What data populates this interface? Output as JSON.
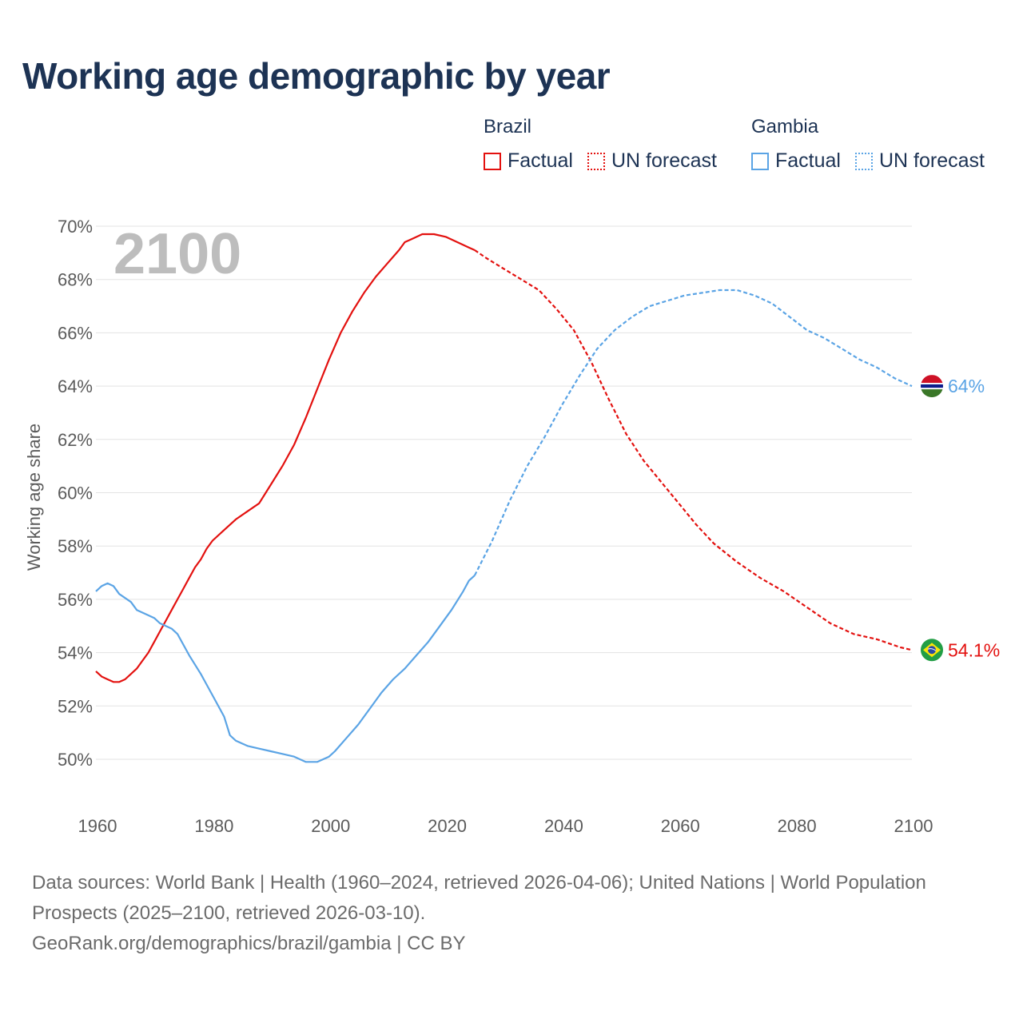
{
  "title": "Working age demographic by year",
  "year_overlay": "2100",
  "legend": {
    "brazil": {
      "name": "Brazil",
      "factual": "Factual",
      "forecast": "UN forecast"
    },
    "gambia": {
      "name": "Gambia",
      "factual": "Factual",
      "forecast": "UN forecast"
    }
  },
  "colors": {
    "brazil": "#e3110f",
    "gambia": "#5ba4e5"
  },
  "footer": {
    "line1": "Data sources: World Bank | Health (1960–2024, retrieved 2026-04-06); United Nations | World Population Prospects (2025–2100, retrieved 2026-03-10).",
    "line2": "GeoRank.org/demographics/brazil/gambia | CC BY"
  },
  "chart_data": {
    "type": "line",
    "title": "Working age demographic by year",
    "xlabel": "",
    "ylabel": "Working age share",
    "xlim": [
      1960,
      2100
    ],
    "ylim": [
      48.5,
      70
    ],
    "x_ticks": [
      1960,
      1980,
      2000,
      2020,
      2040,
      2060,
      2080,
      2100
    ],
    "y_ticks": [
      50,
      52,
      54,
      56,
      58,
      60,
      62,
      64,
      66,
      68,
      70
    ],
    "y_tick_suffix": "%",
    "forecast_start": 2025,
    "series": [
      {
        "name": "Brazil",
        "color": "#e3110f",
        "end_label": "54.1%",
        "points": [
          [
            1960,
            53.3
          ],
          [
            1961,
            53.1
          ],
          [
            1962,
            53.0
          ],
          [
            1963,
            52.9
          ],
          [
            1964,
            52.9
          ],
          [
            1965,
            53.0
          ],
          [
            1966,
            53.2
          ],
          [
            1967,
            53.4
          ],
          [
            1968,
            53.7
          ],
          [
            1969,
            54.0
          ],
          [
            1970,
            54.4
          ],
          [
            1971,
            54.8
          ],
          [
            1972,
            55.2
          ],
          [
            1973,
            55.6
          ],
          [
            1974,
            56.0
          ],
          [
            1975,
            56.4
          ],
          [
            1976,
            56.8
          ],
          [
            1977,
            57.2
          ],
          [
            1978,
            57.5
          ],
          [
            1979,
            57.9
          ],
          [
            1980,
            58.2
          ],
          [
            1982,
            58.6
          ],
          [
            1984,
            59.0
          ],
          [
            1986,
            59.3
          ],
          [
            1988,
            59.6
          ],
          [
            1990,
            60.3
          ],
          [
            1992,
            61.0
          ],
          [
            1994,
            61.8
          ],
          [
            1996,
            62.8
          ],
          [
            1998,
            63.9
          ],
          [
            2000,
            65.0
          ],
          [
            2002,
            66.0
          ],
          [
            2004,
            66.8
          ],
          [
            2006,
            67.5
          ],
          [
            2008,
            68.1
          ],
          [
            2010,
            68.6
          ],
          [
            2012,
            69.1
          ],
          [
            2013,
            69.4
          ],
          [
            2014,
            69.5
          ],
          [
            2016,
            69.7
          ],
          [
            2018,
            69.7
          ],
          [
            2020,
            69.6
          ],
          [
            2022,
            69.4
          ],
          [
            2024,
            69.2
          ],
          [
            2025,
            69.1
          ],
          [
            2027,
            68.8
          ],
          [
            2030,
            68.4
          ],
          [
            2033,
            68.0
          ],
          [
            2036,
            67.6
          ],
          [
            2039,
            66.9
          ],
          [
            2042,
            66.1
          ],
          [
            2045,
            64.9
          ],
          [
            2048,
            63.5
          ],
          [
            2051,
            62.2
          ],
          [
            2054,
            61.2
          ],
          [
            2057,
            60.4
          ],
          [
            2060,
            59.6
          ],
          [
            2063,
            58.8
          ],
          [
            2066,
            58.1
          ],
          [
            2070,
            57.4
          ],
          [
            2074,
            56.8
          ],
          [
            2078,
            56.3
          ],
          [
            2082,
            55.7
          ],
          [
            2086,
            55.1
          ],
          [
            2090,
            54.7
          ],
          [
            2094,
            54.5
          ],
          [
            2098,
            54.2
          ],
          [
            2100,
            54.1
          ]
        ]
      },
      {
        "name": "Gambia",
        "color": "#5ba4e5",
        "end_label": "64%",
        "points": [
          [
            1960,
            56.3
          ],
          [
            1961,
            56.5
          ],
          [
            1962,
            56.6
          ],
          [
            1963,
            56.5
          ],
          [
            1964,
            56.2
          ],
          [
            1966,
            55.9
          ],
          [
            1967,
            55.6
          ],
          [
            1969,
            55.4
          ],
          [
            1970,
            55.3
          ],
          [
            1971,
            55.1
          ],
          [
            1973,
            54.9
          ],
          [
            1974,
            54.7
          ],
          [
            1976,
            53.9
          ],
          [
            1978,
            53.2
          ],
          [
            1980,
            52.4
          ],
          [
            1982,
            51.6
          ],
          [
            1983,
            50.9
          ],
          [
            1984,
            50.7
          ],
          [
            1986,
            50.5
          ],
          [
            1988,
            50.4
          ],
          [
            1990,
            50.3
          ],
          [
            1992,
            50.2
          ],
          [
            1994,
            50.1
          ],
          [
            1996,
            49.9
          ],
          [
            1998,
            49.9
          ],
          [
            2000,
            50.1
          ],
          [
            2001,
            50.3
          ],
          [
            2003,
            50.8
          ],
          [
            2005,
            51.3
          ],
          [
            2007,
            51.9
          ],
          [
            2009,
            52.5
          ],
          [
            2011,
            53.0
          ],
          [
            2013,
            53.4
          ],
          [
            2015,
            53.9
          ],
          [
            2017,
            54.4
          ],
          [
            2019,
            55.0
          ],
          [
            2021,
            55.6
          ],
          [
            2023,
            56.3
          ],
          [
            2024,
            56.7
          ],
          [
            2025,
            56.9
          ],
          [
            2028,
            58.2
          ],
          [
            2031,
            59.7
          ],
          [
            2034,
            61.0
          ],
          [
            2037,
            62.1
          ],
          [
            2040,
            63.3
          ],
          [
            2043,
            64.4
          ],
          [
            2046,
            65.4
          ],
          [
            2049,
            66.1
          ],
          [
            2052,
            66.6
          ],
          [
            2055,
            67.0
          ],
          [
            2058,
            67.2
          ],
          [
            2061,
            67.4
          ],
          [
            2064,
            67.5
          ],
          [
            2067,
            67.6
          ],
          [
            2070,
            67.6
          ],
          [
            2073,
            67.4
          ],
          [
            2076,
            67.1
          ],
          [
            2079,
            66.6
          ],
          [
            2082,
            66.1
          ],
          [
            2085,
            65.8
          ],
          [
            2088,
            65.4
          ],
          [
            2091,
            65.0
          ],
          [
            2094,
            64.7
          ],
          [
            2097,
            64.3
          ],
          [
            2100,
            64.0
          ]
        ]
      }
    ]
  }
}
